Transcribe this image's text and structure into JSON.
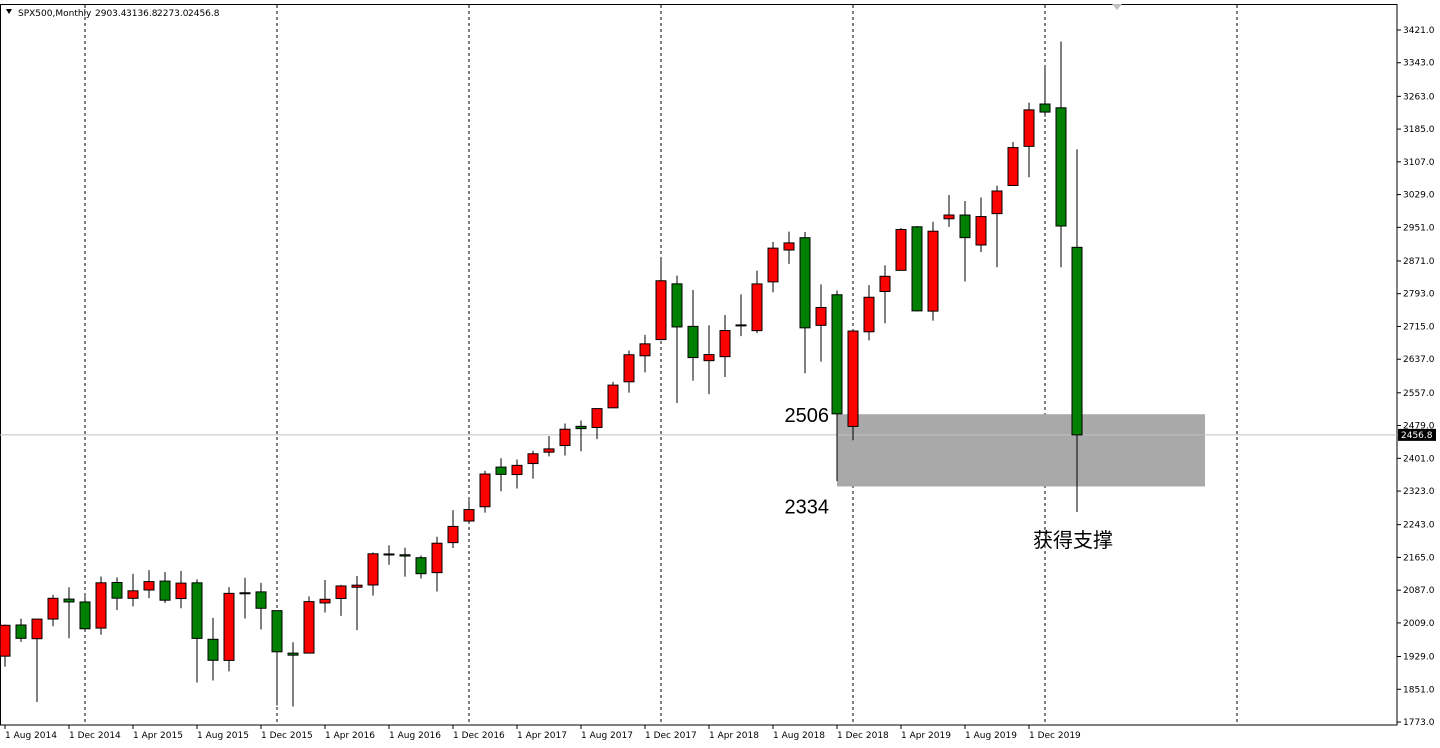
{
  "header": {
    "symbol": "SPX500,Monthly",
    "ohlc": [
      "2903.4",
      "3136.8",
      "2273.0",
      "2456.8"
    ]
  },
  "chart_data": {
    "type": "candlestick",
    "categories": [
      "1 Aug 2014",
      null,
      null,
      null,
      "1 Dec 2014",
      null,
      null,
      null,
      "1 Apr 2015",
      null,
      null,
      null,
      "1 Aug 2015",
      null,
      null,
      null,
      "1 Dec 2015",
      null,
      null,
      null,
      "1 Apr 2016",
      null,
      null,
      null,
      "1 Aug 2016",
      null,
      null,
      null,
      "1 Dec 2016",
      null,
      null,
      null,
      "1 Apr 2017",
      null,
      null,
      null,
      "1 Aug 2017",
      null,
      null,
      null,
      "1 Dec 2017",
      null,
      null,
      null,
      "1 Apr 2018",
      null,
      null,
      null,
      "1 Aug 2018",
      null,
      null,
      null,
      "1 Dec 2018",
      null,
      null,
      null,
      "1 Apr 2019",
      null,
      null,
      null,
      "1 Aug 2019",
      null,
      null,
      null,
      "1 Dec 2019",
      null,
      null,
      null
    ],
    "open": [
      1929.8,
      2004.1,
      1971.4,
      2018.2,
      2065.8,
      2058.9,
      1996.7,
      2105.2,
      2067.6,
      2087.4,
      2108.6,
      2067.0,
      2104.5,
      1970.0,
      1919.7,
      2080.8,
      2082.9,
      2038.2,
      1937.1,
      1937.1,
      2056.6,
      2067.2,
      2093.9,
      2099.3,
      2173.2,
      2171.3,
      2164.3,
      2128.7,
      2200.2,
      2251.6,
      2285.6,
      2380.1,
      2362.3,
      2388.5,
      2415.6,
      2431.4,
      2477.1,
      2474.4,
      2521.2,
      2583.2,
      2645.1,
      2683.7,
      2816.5,
      2715.2,
      2633.5,
      2643.0,
      2718.7,
      2705.0,
      2821.2,
      2897.0,
      2926.3,
      2717.6,
      2790.5,
      2477.0,
      2702.3,
      2798.2,
      2848.6,
      2952.3,
      2751.5,
      2971.4,
      2980.3,
      2909.0,
      2983.7,
      3050.7,
      3143.9,
      3244.7,
      3235.7,
      2903.4
    ],
    "high": [
      2005.0,
      2019.3,
      2018.2,
      2075.8,
      2093.6,
      2072.4,
      2119.6,
      2117.5,
      2125.9,
      2134.7,
      2129.9,
      2132.8,
      2112.7,
      2021.0,
      2094.3,
      2116.5,
      2104.3,
      2038.2,
      1963.0,
      2072.2,
      2111.1,
      2099.7,
      2120.6,
      2177.1,
      2193.8,
      2187.9,
      2169.6,
      2214.1,
      2277.5,
      2301.0,
      2371.5,
      2401.0,
      2398.2,
      2418.7,
      2453.8,
      2484.0,
      2490.9,
      2519.4,
      2583.0,
      2657.7,
      2695.0,
      2872.9,
      2836.0,
      2801.9,
      2717.5,
      2742.2,
      2791.5,
      2848.0,
      2916.5,
      2940.9,
      2939.9,
      2815.2,
      2800.2,
      2709.0,
      2813.5,
      2860.3,
      2949.5,
      2954.1,
      2964.2,
      3028.0,
      3013.6,
      3022.0,
      3050.1,
      3154.3,
      3247.9,
      3337.8,
      3393.5,
      3136.8
    ],
    "low": [
      1904.8,
      1964.0,
      1820.7,
      2001.0,
      1972.6,
      1988.1,
      1980.9,
      2039.7,
      2048.4,
      2067.9,
      2056.3,
      2044.0,
      1867.0,
      1871.9,
      1893.7,
      2019.4,
      1993.3,
      1812.3,
      1810.1,
      1937.1,
      2033.8,
      2025.9,
      1991.7,
      2074.0,
      2147.6,
      2119.1,
      2114.7,
      2083.8,
      2187.4,
      2245.1,
      2271.7,
      2322.2,
      2329.0,
      2352.7,
      2405.7,
      2407.7,
      2417.4,
      2446.6,
      2520.4,
      2557.5,
      2605.5,
      2682.4,
      2532.7,
      2585.9,
      2553.8,
      2594.6,
      2692.0,
      2699.0,
      2796.3,
      2864.1,
      2603.5,
      2631.1,
      2346.6,
      2444.0,
      2681.8,
      2722.3,
      2848.6,
      2750.5,
      2728.8,
      2952.2,
      2822.1,
      2891.9,
      2855.9,
      3050.7,
      3070.3,
      3214.6,
      2855.8,
      2273.0
    ],
    "close": [
      2003.4,
      1972.3,
      2018.1,
      2067.6,
      2058.9,
      1995.0,
      2104.5,
      2067.9,
      2085.5,
      2107.4,
      2063.1,
      2103.8,
      1972.2,
      1920.0,
      2079.4,
      2080.4,
      2043.9,
      1940.2,
      1932.2,
      2059.7,
      2065.3,
      2097.0,
      2098.9,
      2173.6,
      2171.0,
      2168.3,
      2126.2,
      2198.8,
      2238.8,
      2278.9,
      2363.6,
      2362.7,
      2384.2,
      2411.8,
      2423.4,
      2470.3,
      2471.7,
      2519.4,
      2575.3,
      2647.6,
      2673.6,
      2823.8,
      2713.8,
      2640.9,
      2648.1,
      2705.3,
      2718.4,
      2816.3,
      2901.5,
      2914.0,
      2711.7,
      2760.2,
      2506.9,
      2704.1,
      2784.5,
      2834.4,
      2945.8,
      2752.1,
      2941.8,
      2980.4,
      2926.5,
      2976.7,
      3037.6,
      3141.0,
      3230.8,
      3225.5,
      2954.2,
      2456.8
    ],
    "up_color": "#ff0000",
    "down_color": "#008000",
    "ylim": [
      1765.9,
      3480.5
    ],
    "yticks": [
      {
        "value": 3421,
        "label": "3421.0"
      },
      {
        "value": 3343,
        "label": "3343.0"
      },
      {
        "value": 3263,
        "label": "3263.0"
      },
      {
        "value": 3185,
        "label": "3185.0"
      },
      {
        "value": 3107,
        "label": "3107.0"
      },
      {
        "value": 3029,
        "label": "3029.0"
      },
      {
        "value": 2951,
        "label": "2951.0"
      },
      {
        "value": 2871,
        "label": "2871.0"
      },
      {
        "value": 2793,
        "label": "2793.0"
      },
      {
        "value": 2715,
        "label": "2715.0"
      },
      {
        "value": 2637,
        "label": "2637.0"
      },
      {
        "value": 2557,
        "label": "2557.0"
      },
      {
        "value": 2479,
        "label": "2479.0"
      },
      {
        "value": 2401,
        "label": "2401.0"
      },
      {
        "value": 2323,
        "label": "2323.0"
      },
      {
        "value": 2243,
        "label": "2243.0"
      },
      {
        "value": 2165,
        "label": "2165.0"
      },
      {
        "value": 2087,
        "label": "2087.0"
      },
      {
        "value": 2009,
        "label": "2009.0"
      },
      {
        "value": 1929,
        "label": "1929.0"
      },
      {
        "value": 1851,
        "label": "1851.0"
      },
      {
        "value": 1773,
        "label": "1773.0"
      }
    ],
    "current_price": 2456.8,
    "support_zone": {
      "top": 2506,
      "bottom": 2334,
      "label": "获得支撑"
    }
  }
}
